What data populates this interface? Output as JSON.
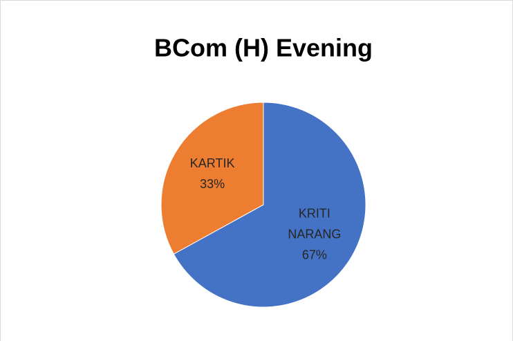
{
  "chart_data": {
    "type": "pie",
    "title": "BCom (H) Evening",
    "categories": [
      "KRITI NARANG",
      "KARTIK"
    ],
    "values": [
      67,
      33
    ],
    "value_labels": [
      "67%",
      "33%"
    ],
    "colors": [
      "#4472c4",
      "#ed7d31"
    ]
  }
}
